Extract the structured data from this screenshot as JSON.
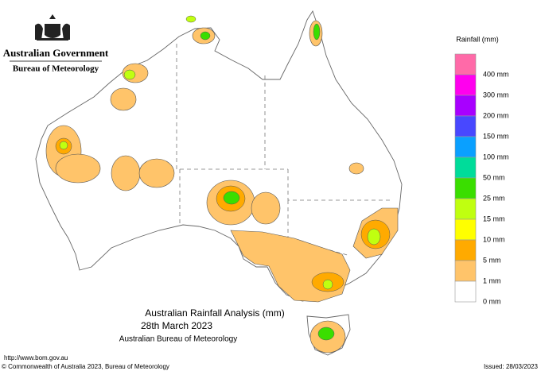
{
  "header": {
    "government": "Australian Government",
    "bureau": "Bureau of Meteorology"
  },
  "legend": {
    "title": "Rainfall (mm)",
    "items": [
      {
        "label": "400 mm",
        "color": "#ff6aa8"
      },
      {
        "label": "300 mm",
        "color": "#ff00ee"
      },
      {
        "label": "200 mm",
        "color": "#a800ff"
      },
      {
        "label": "150 mm",
        "color": "#4848ff"
      },
      {
        "label": "100 mm",
        "color": "#0aa0ff"
      },
      {
        "label": "50 mm",
        "color": "#00dc9a"
      },
      {
        "label": "25 mm",
        "color": "#3ade00"
      },
      {
        "label": "15 mm",
        "color": "#c0ff10"
      },
      {
        "label": "10 mm",
        "color": "#ffff00"
      },
      {
        "label": "5 mm",
        "color": "#ffaa00"
      },
      {
        "label": "1 mm",
        "color": "#ffc46a"
      },
      {
        "label": "0 mm",
        "color": "#ffffff"
      }
    ]
  },
  "caption": {
    "title": "Australian Rainfall Analysis (mm)",
    "date": "28th March 2023",
    "source": "Australian Bureau of Meteorology"
  },
  "footer": {
    "url": "http://www.bom.gov.au",
    "copyright": "© Commonwealth of Australia 2023, Bureau of Meteorology",
    "issued": "Issued: 28/03/2023"
  }
}
